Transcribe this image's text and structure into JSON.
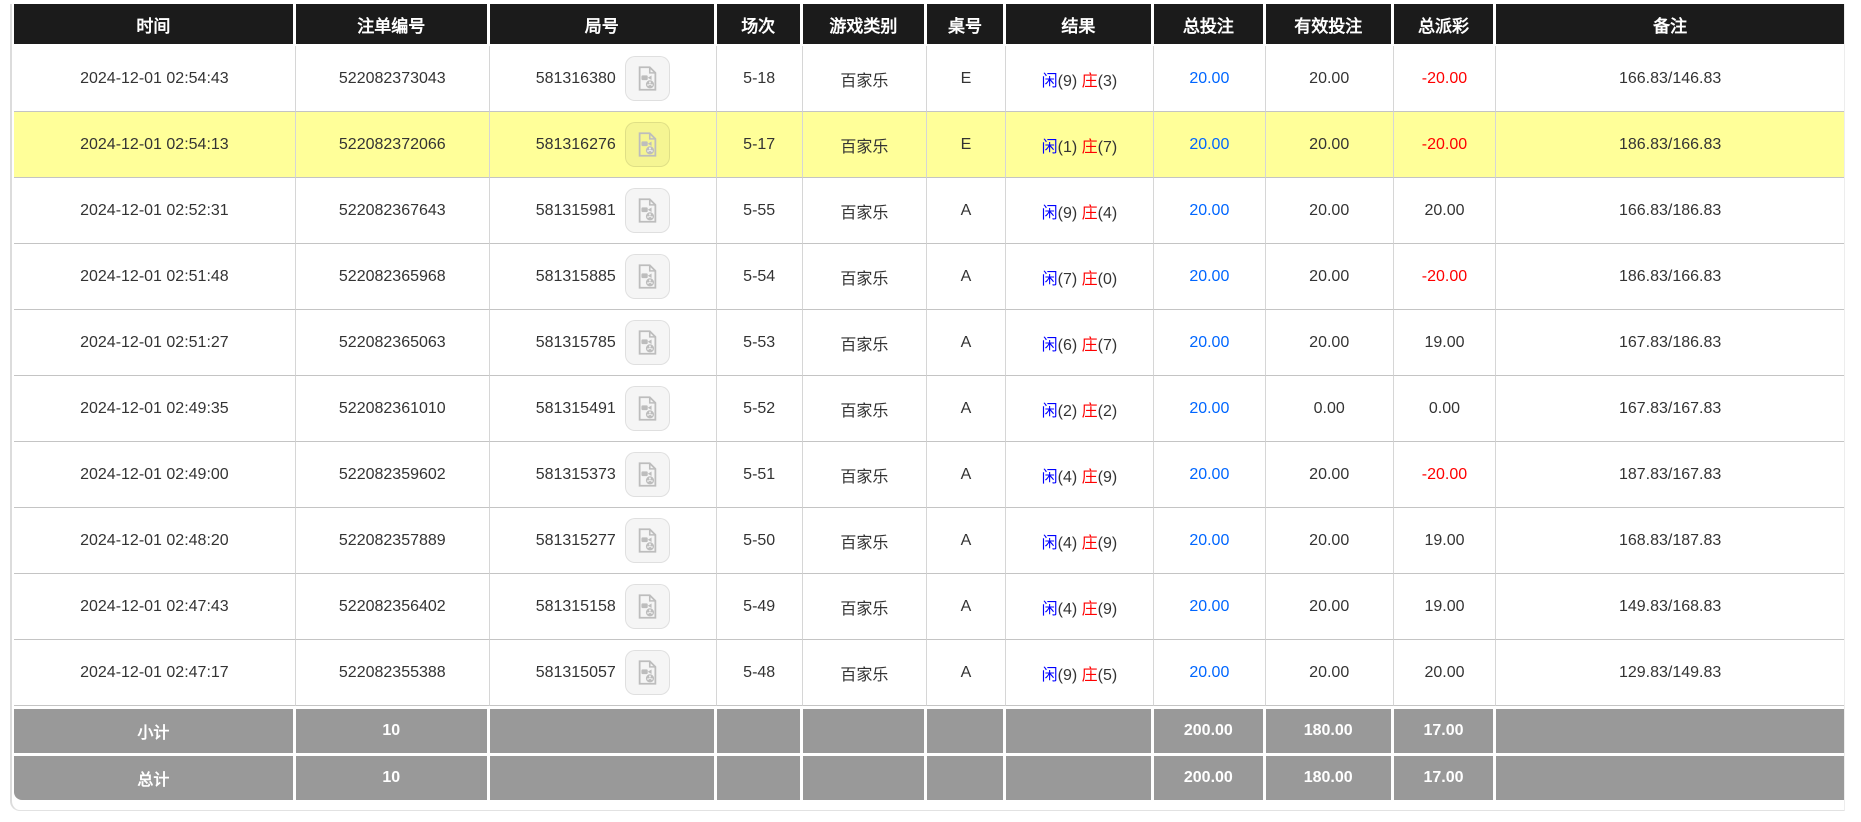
{
  "table": {
    "columns": [
      "时间",
      "注单编号",
      "局号",
      "场次",
      "游戏类别",
      "桌号",
      "结果",
      "总投注",
      "有效投注",
      "总派彩",
      "备注"
    ],
    "result_labels": {
      "player": "闲",
      "banker": "庄"
    },
    "colors": {
      "header_bg": "#1b1b1b",
      "footer_bg": "#999999",
      "highlight_row": "#ffff99",
      "total_bet_blue": "#0066ff",
      "player_blue": "#0000ff",
      "banker_red": "#ff0000",
      "negative_red": "#ff0000"
    },
    "icon_names": {
      "replay": "video-replay-icon"
    },
    "rows": [
      {
        "time": "2024-12-01 02:54:43",
        "bet_id": "522082373043",
        "round_id": "581316380",
        "session": "5-18",
        "game_type": "百家乐",
        "table_code": "E",
        "player_score": "9",
        "banker_score": "3",
        "total_bet": "20.00",
        "valid_bet": "20.00",
        "payout": "-20.00",
        "remark": "166.83/146.83",
        "highlighted": false
      },
      {
        "time": "2024-12-01 02:54:13",
        "bet_id": "522082372066",
        "round_id": "581316276",
        "session": "5-17",
        "game_type": "百家乐",
        "table_code": "E",
        "player_score": "1",
        "banker_score": "7",
        "total_bet": "20.00",
        "valid_bet": "20.00",
        "payout": "-20.00",
        "remark": "186.83/166.83",
        "highlighted": true
      },
      {
        "time": "2024-12-01 02:52:31",
        "bet_id": "522082367643",
        "round_id": "581315981",
        "session": "5-55",
        "game_type": "百家乐",
        "table_code": "A",
        "player_score": "9",
        "banker_score": "4",
        "total_bet": "20.00",
        "valid_bet": "20.00",
        "payout": "20.00",
        "remark": "166.83/186.83",
        "highlighted": false
      },
      {
        "time": "2024-12-01 02:51:48",
        "bet_id": "522082365968",
        "round_id": "581315885",
        "session": "5-54",
        "game_type": "百家乐",
        "table_code": "A",
        "player_score": "7",
        "banker_score": "0",
        "total_bet": "20.00",
        "valid_bet": "20.00",
        "payout": "-20.00",
        "remark": "186.83/166.83",
        "highlighted": false
      },
      {
        "time": "2024-12-01 02:51:27",
        "bet_id": "522082365063",
        "round_id": "581315785",
        "session": "5-53",
        "game_type": "百家乐",
        "table_code": "A",
        "player_score": "6",
        "banker_score": "7",
        "total_bet": "20.00",
        "valid_bet": "20.00",
        "payout": "19.00",
        "remark": "167.83/186.83",
        "highlighted": false
      },
      {
        "time": "2024-12-01 02:49:35",
        "bet_id": "522082361010",
        "round_id": "581315491",
        "session": "5-52",
        "game_type": "百家乐",
        "table_code": "A",
        "player_score": "2",
        "banker_score": "2",
        "total_bet": "20.00",
        "valid_bet": "0.00",
        "payout": "0.00",
        "remark": "167.83/167.83",
        "highlighted": false
      },
      {
        "time": "2024-12-01 02:49:00",
        "bet_id": "522082359602",
        "round_id": "581315373",
        "session": "5-51",
        "game_type": "百家乐",
        "table_code": "A",
        "player_score": "4",
        "banker_score": "9",
        "total_bet": "20.00",
        "valid_bet": "20.00",
        "payout": "-20.00",
        "remark": "187.83/167.83",
        "highlighted": false
      },
      {
        "time": "2024-12-01 02:48:20",
        "bet_id": "522082357889",
        "round_id": "581315277",
        "session": "5-50",
        "game_type": "百家乐",
        "table_code": "A",
        "player_score": "4",
        "banker_score": "9",
        "total_bet": "20.00",
        "valid_bet": "20.00",
        "payout": "19.00",
        "remark": "168.83/187.83",
        "highlighted": false
      },
      {
        "time": "2024-12-01 02:47:43",
        "bet_id": "522082356402",
        "round_id": "581315158",
        "session": "5-49",
        "game_type": "百家乐",
        "table_code": "A",
        "player_score": "4",
        "banker_score": "9",
        "total_bet": "20.00",
        "valid_bet": "20.00",
        "payout": "19.00",
        "remark": "149.83/168.83",
        "highlighted": false
      },
      {
        "time": "2024-12-01 02:47:17",
        "bet_id": "522082355388",
        "round_id": "581315057",
        "session": "5-48",
        "game_type": "百家乐",
        "table_code": "A",
        "player_score": "9",
        "banker_score": "5",
        "total_bet": "20.00",
        "valid_bet": "20.00",
        "payout": "20.00",
        "remark": "129.83/149.83",
        "highlighted": false
      }
    ],
    "footer_rows": [
      {
        "label": "小计",
        "count": "10",
        "total_bet": "200.00",
        "valid_bet": "180.00",
        "payout": "17.00"
      },
      {
        "label": "总计",
        "count": "10",
        "total_bet": "200.00",
        "valid_bet": "180.00",
        "payout": "17.00"
      }
    ]
  }
}
